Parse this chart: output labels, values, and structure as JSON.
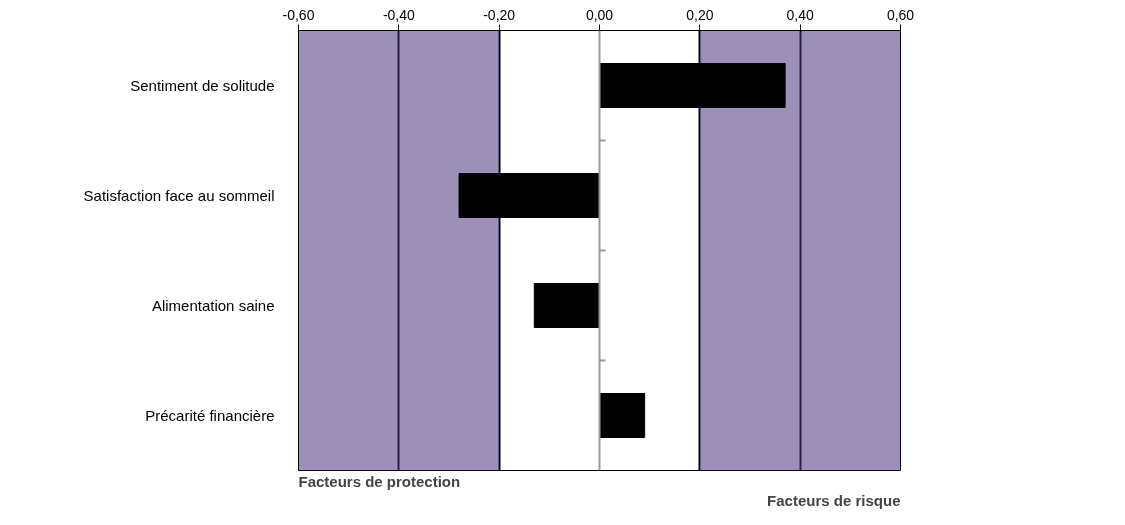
{
  "chart_data": {
    "type": "bar",
    "orientation": "horizontal",
    "categories": [
      "Sentiment de solitude",
      "Satisfaction face au sommeil",
      "Alimentation saine",
      "Précarité financière"
    ],
    "values": [
      0.37,
      -0.28,
      -0.13,
      0.09
    ],
    "color": "#000000",
    "xlim": [
      -0.6,
      0.6
    ],
    "xticks": [
      {
        "value": -0.6,
        "label": "-0,60"
      },
      {
        "value": -0.4,
        "label": "-0,40"
      },
      {
        "value": -0.2,
        "label": "-0,20"
      },
      {
        "value": 0,
        "label": "0,00"
      },
      {
        "value": 0.2,
        "label": "0,20"
      },
      {
        "value": 0.4,
        "label": "0,40"
      },
      {
        "value": 0.6,
        "label": "0,60"
      }
    ],
    "grid": "x",
    "bands": [
      {
        "axis": "x",
        "from": -0.6,
        "to": -0.2,
        "color": "#4b3480"
      },
      {
        "axis": "x",
        "from": 0.2,
        "to": 0.6,
        "color": "#4b3480"
      }
    ],
    "ref_lines": [
      {
        "axis": "x",
        "value": 0,
        "color": "#999999"
      }
    ],
    "annotations": [
      "Facteurs de protection",
      "Facteurs de risque"
    ]
  }
}
